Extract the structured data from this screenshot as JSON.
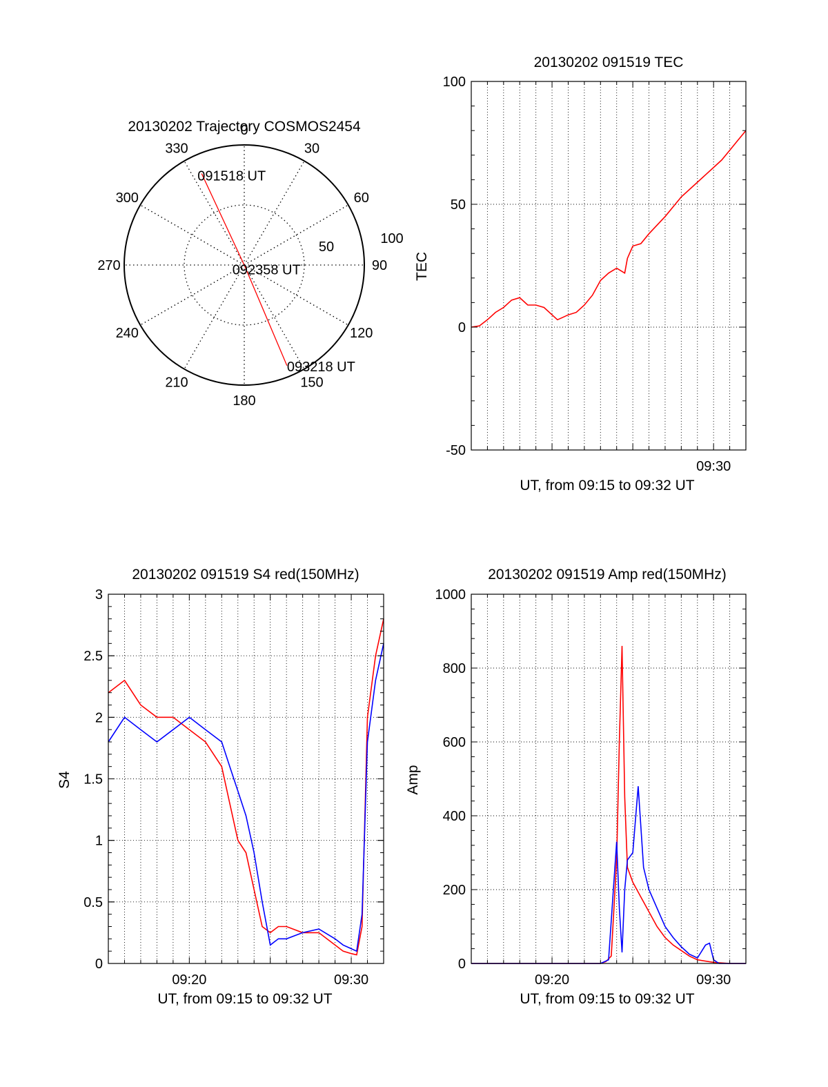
{
  "colors": {
    "red": "#ff0000",
    "blue": "#0000ff",
    "axis": "#000000",
    "grid": "#000000"
  },
  "chart_data": [
    {
      "id": "trajectory",
      "type": "polar",
      "title": "20130202 Trajectory COSMOS2454",
      "angle_labels": [
        "0",
        "30",
        "60",
        "90",
        "120",
        "150",
        "180",
        "210",
        "240",
        "270",
        "300",
        "330"
      ],
      "radial_labels": [
        "50",
        "100"
      ],
      "rlim": [
        0,
        100
      ],
      "points": [
        {
          "azimuth": 335,
          "radius": 84,
          "label": "091518 UT"
        },
        {
          "azimuth": 156,
          "radius": 1,
          "label": "092358 UT"
        },
        {
          "azimuth": 157,
          "radius": 91,
          "label": "093218 UT"
        }
      ],
      "line_color": "#ff0000"
    },
    {
      "id": "tec",
      "type": "line",
      "title": "20130202 091519 TEC",
      "xlabel": "UT, from 09:15 to 09:32 UT",
      "ylabel": "TEC",
      "xlim": [
        "09:15",
        "09:32"
      ],
      "ylim": [
        -50,
        100
      ],
      "yticks": [
        -50,
        0,
        50,
        100
      ],
      "xtick_labels": [
        {
          "x": "09:30",
          "label": "09:30"
        }
      ],
      "grid": true,
      "series": [
        {
          "color": "#ff0000",
          "x": [
            "09:15:00",
            "09:15:30",
            "09:16:00",
            "09:16:30",
            "09:17:00",
            "09:17:30",
            "09:18:00",
            "09:18:30",
            "09:19:00",
            "09:19:30",
            "09:20:00",
            "09:20:20",
            "09:20:40",
            "09:21:00",
            "09:21:30",
            "09:22:00",
            "09:22:30",
            "09:23:00",
            "09:23:30",
            "09:24:00",
            "09:24:30",
            "09:24:40",
            "09:25:00",
            "09:25:30",
            "09:26:00",
            "09:27:00",
            "09:28:00",
            "09:29:00",
            "09:29:30",
            "09:30:00",
            "09:30:30",
            "09:31:00",
            "09:31:30",
            "09:32:00"
          ],
          "y": [
            0,
            0.5,
            3,
            6,
            8,
            11,
            12,
            9,
            9,
            8,
            5,
            3,
            4,
            5,
            6,
            9,
            13,
            19,
            22,
            24,
            22,
            28,
            33,
            34,
            38,
            45,
            53,
            59,
            62,
            65,
            68,
            72,
            76,
            80
          ]
        }
      ]
    },
    {
      "id": "s4",
      "type": "line",
      "title": "20130202 091519 S4 red(150MHz)",
      "xlabel": "UT, from 09:15 to 09:32 UT",
      "ylabel": "S4",
      "xlim": [
        "09:15",
        "09:32"
      ],
      "ylim": [
        0,
        3
      ],
      "yticks": [
        "0",
        "0.5",
        "1",
        "1.5",
        "2",
        "2.5",
        "3"
      ],
      "xtick_labels": [
        {
          "x": "09:20",
          "label": "09:20"
        },
        {
          "x": "09:30",
          "label": "09:30"
        }
      ],
      "grid": true,
      "series": [
        {
          "color": "#ff0000",
          "x": [
            "09:15:00",
            "09:16:00",
            "09:17:00",
            "09:18:00",
            "09:19:00",
            "09:20:00",
            "09:21:00",
            "09:22:00",
            "09:22:30",
            "09:23:00",
            "09:23:30",
            "09:24:00",
            "09:24:30",
            "09:25:00",
            "09:25:30",
            "09:26:00",
            "09:27:00",
            "09:28:00",
            "09:29:00",
            "09:29:30",
            "09:30:00",
            "09:30:20",
            "09:30:40",
            "09:31:00",
            "09:31:30",
            "09:32:00"
          ],
          "y": [
            2.2,
            2.3,
            2.1,
            2.0,
            2.0,
            1.9,
            1.8,
            1.6,
            1.3,
            1.0,
            0.9,
            0.6,
            0.3,
            0.25,
            0.3,
            0.3,
            0.25,
            0.25,
            0.15,
            0.1,
            0.08,
            0.07,
            0.3,
            2.0,
            2.5,
            2.8
          ]
        },
        {
          "color": "#0000ff",
          "x": [
            "09:15:00",
            "09:16:00",
            "09:17:00",
            "09:18:00",
            "09:19:00",
            "09:20:00",
            "09:21:00",
            "09:22:00",
            "09:22:30",
            "09:23:00",
            "09:23:30",
            "09:24:00",
            "09:24:30",
            "09:25:00",
            "09:25:30",
            "09:26:00",
            "09:27:00",
            "09:28:00",
            "09:29:00",
            "09:29:30",
            "09:30:00",
            "09:30:20",
            "09:30:40",
            "09:31:00",
            "09:31:30",
            "09:32:00"
          ],
          "y": [
            1.8,
            2.0,
            1.9,
            1.8,
            1.9,
            2.0,
            1.9,
            1.8,
            1.6,
            1.4,
            1.2,
            0.9,
            0.5,
            0.15,
            0.2,
            0.2,
            0.25,
            0.28,
            0.2,
            0.15,
            0.12,
            0.1,
            0.4,
            1.8,
            2.3,
            2.6
          ]
        }
      ]
    },
    {
      "id": "amp",
      "type": "line",
      "title": "20130202 091519 Amp red(150MHz)",
      "xlabel": "UT, from 09:15 to 09:32 UT",
      "ylabel": "Amp",
      "xlim": [
        "09:15",
        "09:32"
      ],
      "ylim": [
        0,
        1000
      ],
      "yticks": [
        0,
        200,
        400,
        600,
        800,
        1000
      ],
      "xtick_labels": [
        {
          "x": "09:20",
          "label": "09:20"
        },
        {
          "x": "09:30",
          "label": "09:30"
        }
      ],
      "grid": true,
      "series": [
        {
          "color": "#ff0000",
          "x": [
            "09:15:00",
            "09:18:00",
            "09:21:00",
            "09:23:00",
            "09:23:20",
            "09:23:40",
            "09:24:00",
            "09:24:10",
            "09:24:20",
            "09:24:30",
            "09:24:40",
            "09:25:00",
            "09:25:30",
            "09:26:00",
            "09:26:30",
            "09:27:00",
            "09:27:30",
            "09:28:00",
            "09:28:30",
            "09:29:00",
            "09:30:00",
            "09:31:00",
            "09:32:00"
          ],
          "y": [
            0,
            0,
            0,
            0,
            5,
            20,
            280,
            600,
            860,
            450,
            260,
            220,
            180,
            140,
            100,
            70,
            50,
            35,
            20,
            10,
            3,
            0,
            0
          ]
        },
        {
          "color": "#0000ff",
          "x": [
            "09:15:00",
            "09:18:00",
            "09:21:00",
            "09:23:00",
            "09:23:30",
            "09:24:00",
            "09:24:10",
            "09:24:20",
            "09:24:30",
            "09:24:40",
            "09:25:00",
            "09:25:20",
            "09:25:40",
            "09:26:00",
            "09:26:30",
            "09:27:00",
            "09:27:30",
            "09:28:00",
            "09:28:30",
            "09:29:00",
            "09:29:30",
            "09:29:45",
            "09:30:00",
            "09:30:20",
            "09:31:00",
            "09:32:00"
          ],
          "y": [
            0,
            0,
            0,
            0,
            10,
            330,
            150,
            30,
            200,
            280,
            300,
            480,
            260,
            200,
            150,
            100,
            70,
            45,
            25,
            15,
            50,
            55,
            10,
            0,
            0,
            0
          ]
        }
      ]
    }
  ]
}
